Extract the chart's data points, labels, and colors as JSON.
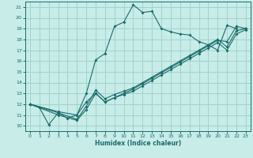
{
  "xlabel": "Humidex (Indice chaleur)",
  "bg_color": "#c8ece8",
  "grid_color": "#a0d4cc",
  "line_color": "#1a6b6b",
  "xlim": [
    -0.5,
    23.5
  ],
  "ylim": [
    9.5,
    21.5
  ],
  "xticks": [
    0,
    1,
    2,
    3,
    4,
    5,
    6,
    7,
    8,
    9,
    10,
    11,
    12,
    13,
    14,
    15,
    16,
    17,
    18,
    19,
    20,
    21,
    22,
    23
  ],
  "yticks": [
    10,
    11,
    12,
    13,
    14,
    15,
    16,
    17,
    18,
    19,
    20,
    21
  ],
  "series": [
    [
      [
        0,
        1,
        2,
        3,
        4,
        5,
        6,
        7,
        8,
        9,
        10,
        11,
        12,
        13,
        14,
        15,
        16,
        17,
        18,
        19,
        20,
        21,
        22
      ],
      [
        12.0,
        11.7,
        10.1,
        11.2,
        10.7,
        11.0,
        13.0,
        16.1,
        16.7,
        19.2,
        19.6,
        21.2,
        20.5,
        20.6,
        19.0,
        18.7,
        18.5,
        18.4,
        17.8,
        17.5,
        17.0,
        19.3,
        19.0
      ]
    ],
    [
      [
        0,
        3,
        5,
        6,
        7,
        8,
        9,
        10,
        11,
        12,
        13,
        14,
        15,
        16,
        17,
        18,
        19,
        20,
        21,
        22,
        23
      ],
      [
        12.0,
        11.3,
        11.0,
        12.2,
        13.0,
        12.2,
        12.6,
        13.0,
        13.4,
        13.9,
        14.4,
        14.9,
        15.4,
        15.9,
        16.4,
        16.9,
        17.4,
        17.9,
        17.8,
        19.2,
        19.0
      ]
    ],
    [
      [
        0,
        3,
        5,
        6,
        7,
        8,
        9,
        10,
        11,
        12,
        13,
        14,
        15,
        16,
        17,
        18,
        19,
        20,
        21,
        22,
        23
      ],
      [
        12.0,
        11.2,
        10.6,
        11.8,
        13.3,
        12.5,
        12.9,
        13.2,
        13.5,
        14.0,
        14.5,
        15.0,
        15.5,
        16.0,
        16.5,
        17.0,
        17.5,
        18.0,
        17.3,
        18.8,
        19.0
      ]
    ],
    [
      [
        0,
        3,
        5,
        6,
        7,
        8,
        9,
        10,
        11,
        12,
        13,
        14,
        15,
        16,
        17,
        18,
        19,
        20,
        21,
        22,
        23
      ],
      [
        12.0,
        11.0,
        10.5,
        11.5,
        13.0,
        12.2,
        12.6,
        12.9,
        13.2,
        13.7,
        14.2,
        14.7,
        15.2,
        15.7,
        16.2,
        16.7,
        17.2,
        17.7,
        17.0,
        18.5,
        18.9
      ]
    ]
  ]
}
